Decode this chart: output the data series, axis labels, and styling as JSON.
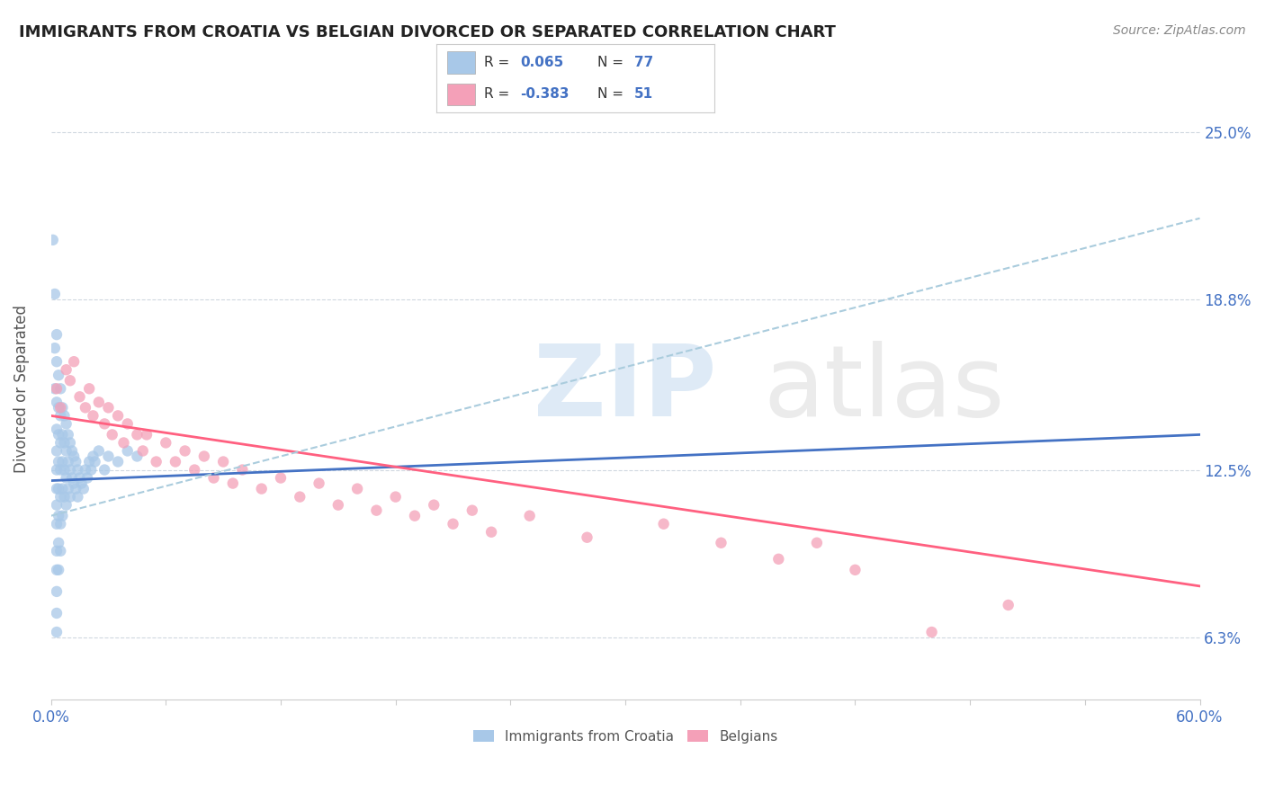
{
  "title": "IMMIGRANTS FROM CROATIA VS BELGIAN DIVORCED OR SEPARATED CORRELATION CHART",
  "source_text": "Source: ZipAtlas.com",
  "ylabel": "Divorced or Separated",
  "xlim": [
    0.0,
    0.6
  ],
  "ylim": [
    0.04,
    0.27
  ],
  "xticks": [
    0.0,
    0.06,
    0.12,
    0.18,
    0.24,
    0.3,
    0.36,
    0.42,
    0.48,
    0.54,
    0.6
  ],
  "ytick_positions": [
    0.063,
    0.125,
    0.188,
    0.25
  ],
  "yticklabels": [
    "6.3%",
    "12.5%",
    "18.8%",
    "25.0%"
  ],
  "color_blue": "#A8C8E8",
  "color_pink": "#F4A0B8",
  "color_trendline_blue": "#4472C4",
  "color_trendline_pink": "#FF6080",
  "color_trendline_gray": "#AACCDD",
  "blue_trendline": [
    [
      0.0,
      0.121
    ],
    [
      0.6,
      0.138
    ]
  ],
  "pink_trendline": [
    [
      0.0,
      0.145
    ],
    [
      0.6,
      0.082
    ]
  ],
  "gray_trendline": [
    [
      0.0,
      0.108
    ],
    [
      0.6,
      0.218
    ]
  ],
  "blue_points": [
    [
      0.001,
      0.21
    ],
    [
      0.002,
      0.19
    ],
    [
      0.002,
      0.17
    ],
    [
      0.002,
      0.155
    ],
    [
      0.003,
      0.175
    ],
    [
      0.003,
      0.165
    ],
    [
      0.003,
      0.15
    ],
    [
      0.003,
      0.14
    ],
    [
      0.003,
      0.132
    ],
    [
      0.003,
      0.125
    ],
    [
      0.003,
      0.118
    ],
    [
      0.003,
      0.112
    ],
    [
      0.003,
      0.105
    ],
    [
      0.003,
      0.095
    ],
    [
      0.003,
      0.088
    ],
    [
      0.003,
      0.08
    ],
    [
      0.003,
      0.072
    ],
    [
      0.003,
      0.065
    ],
    [
      0.004,
      0.16
    ],
    [
      0.004,
      0.148
    ],
    [
      0.004,
      0.138
    ],
    [
      0.004,
      0.128
    ],
    [
      0.004,
      0.118
    ],
    [
      0.004,
      0.108
    ],
    [
      0.004,
      0.098
    ],
    [
      0.004,
      0.088
    ],
    [
      0.005,
      0.155
    ],
    [
      0.005,
      0.145
    ],
    [
      0.005,
      0.135
    ],
    [
      0.005,
      0.125
    ],
    [
      0.005,
      0.115
    ],
    [
      0.005,
      0.105
    ],
    [
      0.005,
      0.095
    ],
    [
      0.006,
      0.148
    ],
    [
      0.006,
      0.138
    ],
    [
      0.006,
      0.128
    ],
    [
      0.006,
      0.118
    ],
    [
      0.006,
      0.108
    ],
    [
      0.007,
      0.145
    ],
    [
      0.007,
      0.135
    ],
    [
      0.007,
      0.125
    ],
    [
      0.007,
      0.115
    ],
    [
      0.008,
      0.142
    ],
    [
      0.008,
      0.132
    ],
    [
      0.008,
      0.122
    ],
    [
      0.008,
      0.112
    ],
    [
      0.009,
      0.138
    ],
    [
      0.009,
      0.128
    ],
    [
      0.009,
      0.118
    ],
    [
      0.01,
      0.135
    ],
    [
      0.01,
      0.125
    ],
    [
      0.01,
      0.115
    ],
    [
      0.011,
      0.132
    ],
    [
      0.011,
      0.122
    ],
    [
      0.012,
      0.13
    ],
    [
      0.012,
      0.12
    ],
    [
      0.013,
      0.128
    ],
    [
      0.013,
      0.118
    ],
    [
      0.014,
      0.125
    ],
    [
      0.014,
      0.115
    ],
    [
      0.015,
      0.122
    ],
    [
      0.016,
      0.12
    ],
    [
      0.017,
      0.118
    ],
    [
      0.018,
      0.125
    ],
    [
      0.019,
      0.122
    ],
    [
      0.02,
      0.128
    ],
    [
      0.021,
      0.125
    ],
    [
      0.022,
      0.13
    ],
    [
      0.023,
      0.128
    ],
    [
      0.025,
      0.132
    ],
    [
      0.028,
      0.125
    ],
    [
      0.03,
      0.13
    ],
    [
      0.035,
      0.128
    ],
    [
      0.04,
      0.132
    ],
    [
      0.045,
      0.13
    ]
  ],
  "pink_points": [
    [
      0.003,
      0.155
    ],
    [
      0.005,
      0.148
    ],
    [
      0.008,
      0.162
    ],
    [
      0.01,
      0.158
    ],
    [
      0.012,
      0.165
    ],
    [
      0.015,
      0.152
    ],
    [
      0.018,
      0.148
    ],
    [
      0.02,
      0.155
    ],
    [
      0.022,
      0.145
    ],
    [
      0.025,
      0.15
    ],
    [
      0.028,
      0.142
    ],
    [
      0.03,
      0.148
    ],
    [
      0.032,
      0.138
    ],
    [
      0.035,
      0.145
    ],
    [
      0.038,
      0.135
    ],
    [
      0.04,
      0.142
    ],
    [
      0.045,
      0.138
    ],
    [
      0.048,
      0.132
    ],
    [
      0.05,
      0.138
    ],
    [
      0.055,
      0.128
    ],
    [
      0.06,
      0.135
    ],
    [
      0.065,
      0.128
    ],
    [
      0.07,
      0.132
    ],
    [
      0.075,
      0.125
    ],
    [
      0.08,
      0.13
    ],
    [
      0.085,
      0.122
    ],
    [
      0.09,
      0.128
    ],
    [
      0.095,
      0.12
    ],
    [
      0.1,
      0.125
    ],
    [
      0.11,
      0.118
    ],
    [
      0.12,
      0.122
    ],
    [
      0.13,
      0.115
    ],
    [
      0.14,
      0.12
    ],
    [
      0.15,
      0.112
    ],
    [
      0.16,
      0.118
    ],
    [
      0.17,
      0.11
    ],
    [
      0.18,
      0.115
    ],
    [
      0.19,
      0.108
    ],
    [
      0.2,
      0.112
    ],
    [
      0.21,
      0.105
    ],
    [
      0.22,
      0.11
    ],
    [
      0.23,
      0.102
    ],
    [
      0.25,
      0.108
    ],
    [
      0.28,
      0.1
    ],
    [
      0.32,
      0.105
    ],
    [
      0.35,
      0.098
    ],
    [
      0.38,
      0.092
    ],
    [
      0.4,
      0.098
    ],
    [
      0.42,
      0.088
    ],
    [
      0.46,
      0.065
    ],
    [
      0.5,
      0.075
    ]
  ]
}
